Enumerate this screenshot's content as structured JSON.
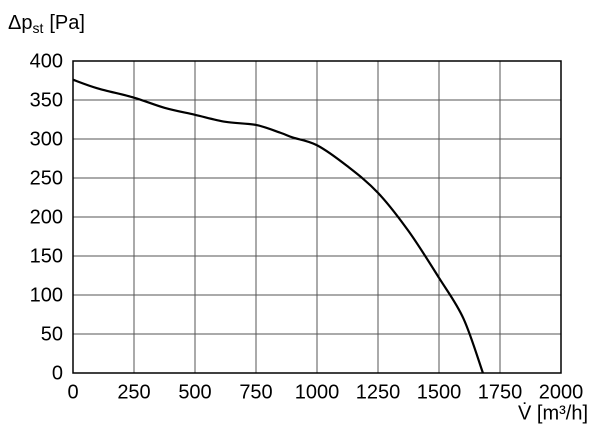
{
  "chart_data": {
    "type": "line",
    "ylabel": [
      "Δp",
      "st",
      "[Pa]"
    ],
    "xlabel": "V̇ [m³/h]",
    "x": [
      0,
      100,
      250,
      375,
      500,
      625,
      750,
      850,
      900,
      1000,
      1125,
      1250,
      1375,
      1500,
      1600,
      1680
    ],
    "series": [
      {
        "color": "#000000",
        "values": [
          376,
          365,
          353,
          340,
          331,
          322,
          318,
          308,
          302,
          292,
          265,
          231,
          182,
          122,
          70,
          0
        ]
      }
    ],
    "xlim": [
      0,
      2000
    ],
    "xticks": [
      0,
      250,
      500,
      750,
      1000,
      1250,
      1500,
      1750,
      2000
    ],
    "ylim": [
      0,
      400
    ],
    "yticks": [
      0,
      50,
      100,
      150,
      200,
      250,
      300,
      350,
      400
    ],
    "grid": true
  }
}
